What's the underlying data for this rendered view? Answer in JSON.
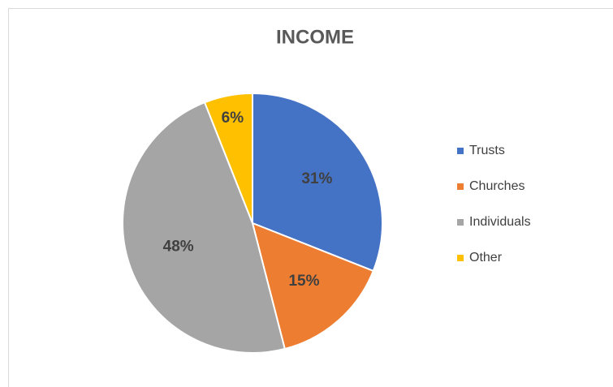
{
  "chart_data": {
    "type": "pie",
    "title": "INCOME",
    "categories": [
      "Trusts",
      "Churches",
      "Individuals",
      "Other"
    ],
    "values": [
      31,
      15,
      48,
      6
    ],
    "value_labels": [
      "31%",
      "15%",
      "48%",
      "6%"
    ],
    "colors": [
      "#4472c4",
      "#ed7d31",
      "#a5a5a5",
      "#ffc000"
    ],
    "legend": "right"
  }
}
